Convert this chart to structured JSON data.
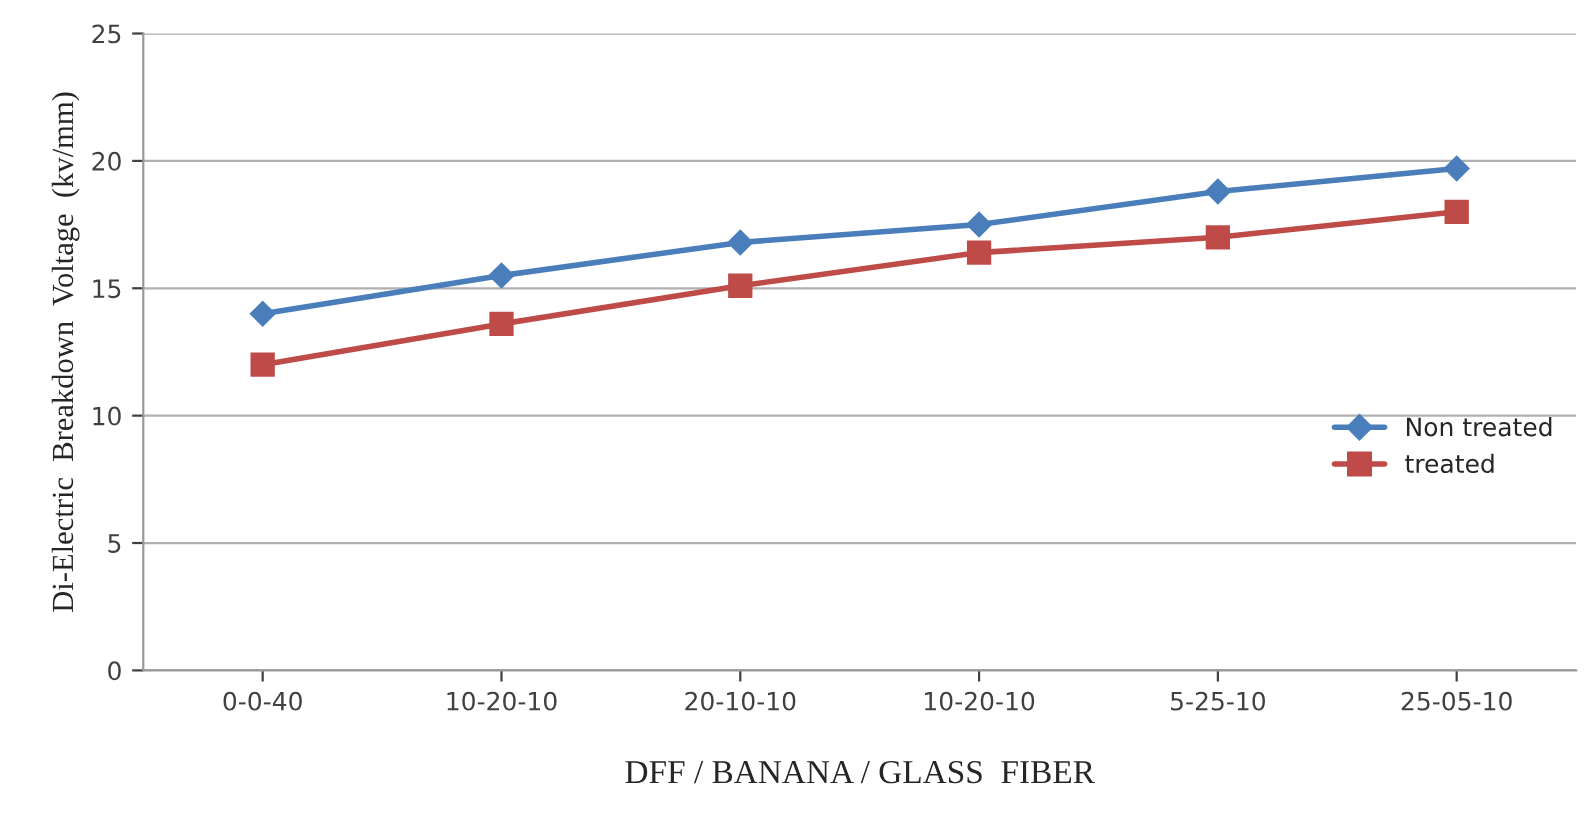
{
  "chart_data": {
    "type": "line",
    "xlabel": "DFF / BANANA / GLASS  FIBER",
    "ylabel": "Di-Electric  Breakdown  Voltage  (kv/mm)",
    "categories": [
      "0-0-40",
      "10-20-10",
      "20-10-10",
      "10-20-10",
      "5-25-10",
      "25-05-10"
    ],
    "series": [
      {
        "name": "Non treated",
        "color": "#4a7ebb",
        "marker": "diamond",
        "values": [
          14.0,
          15.5,
          16.8,
          17.5,
          18.8,
          19.7
        ]
      },
      {
        "name": "treated",
        "color": "#be4b48",
        "marker": "square",
        "values": [
          12.0,
          13.6,
          15.1,
          16.4,
          17.0,
          18.0
        ]
      }
    ],
    "ylim": [
      0,
      25
    ],
    "yticks": [
      0,
      5,
      10,
      15,
      20,
      25
    ],
    "grid": "y",
    "legend": "right"
  }
}
